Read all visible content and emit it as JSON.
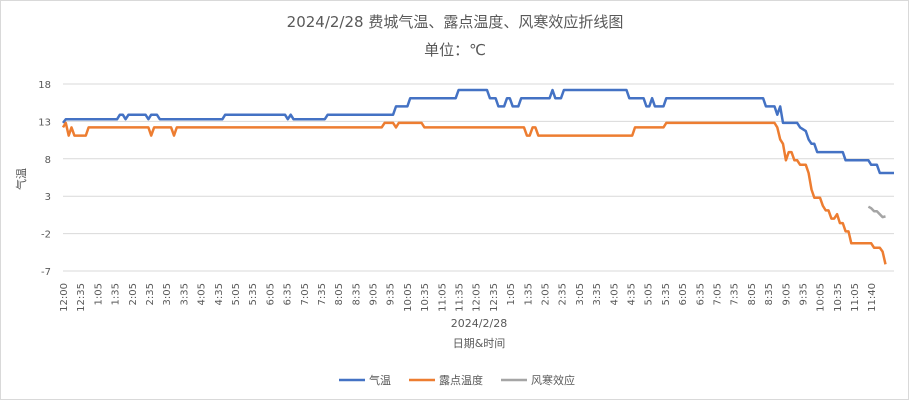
{
  "chart_data": {
    "type": "line",
    "title": "2024/2/28 费城气温、露点温度、风寒效应折线图",
    "subtitle": "单位：℃",
    "xlabel": "日期&时间",
    "xgroup": "2024/2/28",
    "ylabel": "气温",
    "ylim": [
      -7,
      18
    ],
    "yticks": [
      18,
      13,
      8,
      3,
      -2,
      -7
    ],
    "grid": true,
    "legend_position": "bottom",
    "x_tick_labels": [
      "12:00",
      "12:35",
      "1:05",
      "1:35",
      "2:05",
      "2:35",
      "3:05",
      "3:35",
      "4:05",
      "4:35",
      "5:05",
      "5:35",
      "6:05",
      "6:35",
      "7:05",
      "7:35",
      "8:05",
      "8:35",
      "9:05",
      "9:35",
      "10:05",
      "10:35",
      "11:05",
      "11:35",
      "12:05",
      "12:35",
      "1:05",
      "1:35",
      "2:05",
      "2:35",
      "3:05",
      "3:35",
      "4:05",
      "4:35",
      "5:05",
      "5:35",
      "6:05",
      "6:35",
      "7:05",
      "7:35",
      "8:05",
      "8:35",
      "9:05",
      "9:35",
      "10:05",
      "10:35",
      "11:05",
      "11:40"
    ],
    "x_range_minutes": [
      0,
      1420
    ],
    "series": [
      {
        "name": "气温",
        "color": "#4472c4",
        "points": [
          [
            0,
            12.8
          ],
          [
            5,
            13.3
          ],
          [
            30,
            13.3
          ],
          [
            60,
            13.3
          ],
          [
            95,
            13.3
          ],
          [
            100,
            13.9
          ],
          [
            105,
            13.9
          ],
          [
            110,
            13.3
          ],
          [
            115,
            13.9
          ],
          [
            145,
            13.9
          ],
          [
            150,
            13.3
          ],
          [
            155,
            13.9
          ],
          [
            165,
            13.9
          ],
          [
            170,
            13.3
          ],
          [
            280,
            13.3
          ],
          [
            285,
            13.9
          ],
          [
            390,
            13.9
          ],
          [
            395,
            13.3
          ],
          [
            400,
            13.9
          ],
          [
            405,
            13.3
          ],
          [
            460,
            13.3
          ],
          [
            465,
            13.9
          ],
          [
            580,
            13.9
          ],
          [
            585,
            15.0
          ],
          [
            605,
            15.0
          ],
          [
            610,
            16.1
          ],
          [
            690,
            16.1
          ],
          [
            695,
            17.2
          ],
          [
            745,
            17.2
          ],
          [
            750,
            16.1
          ],
          [
            760,
            16.1
          ],
          [
            765,
            15.0
          ],
          [
            775,
            15.0
          ],
          [
            780,
            16.1
          ],
          [
            785,
            16.1
          ],
          [
            790,
            15.0
          ],
          [
            800,
            15.0
          ],
          [
            805,
            16.1
          ],
          [
            855,
            16.1
          ],
          [
            860,
            17.2
          ],
          [
            865,
            16.1
          ],
          [
            875,
            16.1
          ],
          [
            880,
            17.2
          ],
          [
            990,
            17.2
          ],
          [
            995,
            16.1
          ],
          [
            1020,
            16.1
          ],
          [
            1025,
            15.0
          ],
          [
            1030,
            15.0
          ],
          [
            1035,
            16.1
          ],
          [
            1040,
            15.0
          ],
          [
            1055,
            15.0
          ],
          [
            1060,
            16.1
          ],
          [
            1230,
            16.1
          ],
          [
            1235,
            15.0
          ],
          [
            1250,
            15.0
          ],
          [
            1255,
            13.9
          ],
          [
            1260,
            15.0
          ],
          [
            1265,
            12.8
          ],
          [
            1290,
            12.8
          ],
          [
            1295,
            12.2
          ],
          [
            1305,
            11.7
          ],
          [
            1310,
            10.6
          ],
          [
            1315,
            10.0
          ],
          [
            1320,
            10.0
          ],
          [
            1325,
            8.9
          ],
          [
            1370,
            8.9
          ],
          [
            1375,
            7.8
          ],
          [
            1415,
            7.8
          ],
          [
            1420,
            7.2
          ],
          [
            1430,
            7.2
          ],
          [
            1435,
            6.1
          ],
          [
            1460,
            6.1
          ]
        ]
      },
      {
        "name": "露点温度",
        "color": "#ed7d31",
        "points": [
          [
            0,
            12.2
          ],
          [
            5,
            12.8
          ],
          [
            10,
            11.1
          ],
          [
            15,
            12.2
          ],
          [
            20,
            11.1
          ],
          [
            40,
            11.1
          ],
          [
            45,
            12.2
          ],
          [
            150,
            12.2
          ],
          [
            155,
            11.1
          ],
          [
            160,
            12.2
          ],
          [
            190,
            12.2
          ],
          [
            195,
            11.1
          ],
          [
            200,
            12.2
          ],
          [
            560,
            12.2
          ],
          [
            565,
            12.8
          ],
          [
            580,
            12.8
          ],
          [
            585,
            12.2
          ],
          [
            590,
            12.8
          ],
          [
            630,
            12.8
          ],
          [
            635,
            12.2
          ],
          [
            810,
            12.2
          ],
          [
            815,
            11.1
          ],
          [
            820,
            11.1
          ],
          [
            825,
            12.2
          ],
          [
            830,
            12.2
          ],
          [
            835,
            11.1
          ],
          [
            1000,
            11.1
          ],
          [
            1005,
            12.2
          ],
          [
            1055,
            12.2
          ],
          [
            1060,
            12.8
          ],
          [
            1250,
            12.8
          ],
          [
            1255,
            12.2
          ],
          [
            1260,
            10.6
          ],
          [
            1265,
            10.0
          ],
          [
            1270,
            7.8
          ],
          [
            1275,
            8.9
          ],
          [
            1280,
            8.9
          ],
          [
            1285,
            7.8
          ],
          [
            1290,
            7.8
          ],
          [
            1295,
            7.2
          ],
          [
            1305,
            7.2
          ],
          [
            1310,
            6.1
          ],
          [
            1315,
            3.9
          ],
          [
            1320,
            2.8
          ],
          [
            1330,
            2.8
          ],
          [
            1335,
            1.7
          ],
          [
            1340,
            1.1
          ],
          [
            1345,
            1.1
          ],
          [
            1350,
            0.0
          ],
          [
            1355,
            0.0
          ],
          [
            1360,
            0.6
          ],
          [
            1365,
            -0.6
          ],
          [
            1370,
            -0.6
          ],
          [
            1375,
            -1.7
          ],
          [
            1380,
            -1.7
          ],
          [
            1385,
            -3.3
          ],
          [
            1420,
            -3.3
          ],
          [
            1425,
            -3.9
          ],
          [
            1435,
            -3.9
          ],
          [
            1440,
            -4.4
          ],
          [
            1445,
            -6.1
          ]
        ]
      },
      {
        "name": "风寒效应",
        "color": "#a5a5a5",
        "points": [
          [
            1415,
            1.6
          ],
          [
            1420,
            1.4
          ],
          [
            1425,
            1.0
          ],
          [
            1430,
            1.0
          ],
          [
            1435,
            0.6
          ],
          [
            1440,
            0.2
          ],
          [
            1445,
            0.3
          ]
        ]
      }
    ]
  }
}
